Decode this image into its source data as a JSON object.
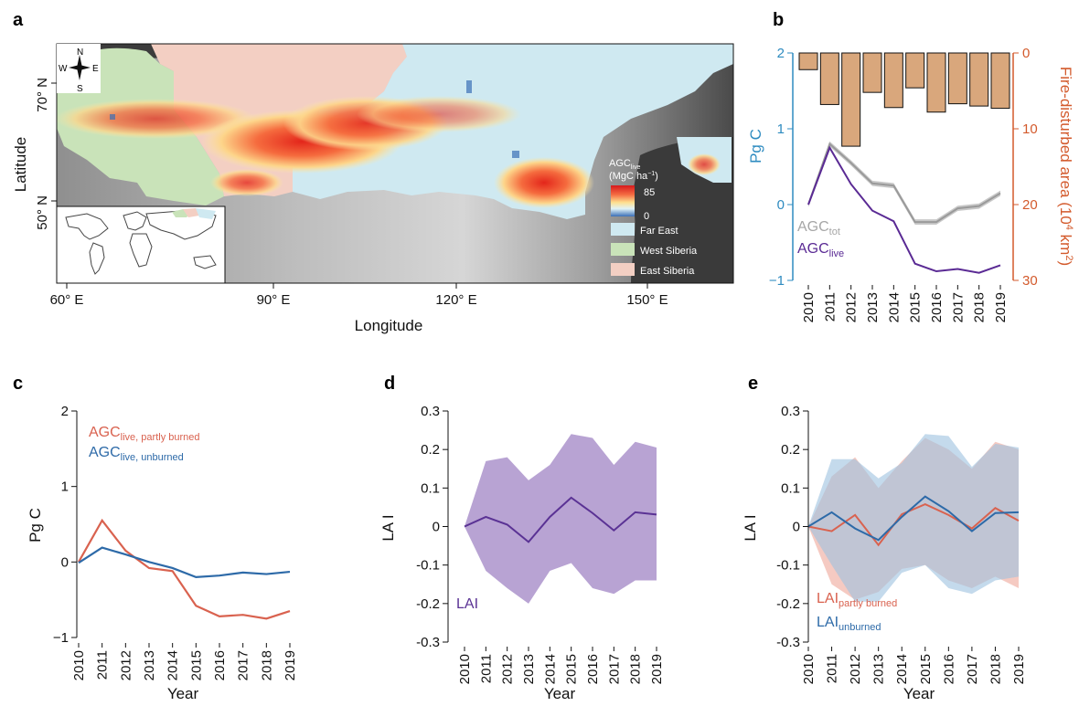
{
  "panels": {
    "a": "a",
    "b": "b",
    "c": "c",
    "d": "d",
    "e": "e"
  },
  "colors": {
    "far_east": "#cfe9f1",
    "west_siberia": "#c9e3b9",
    "east_siberia": "#f3cfc3",
    "agc_tot": "#9a9a9a",
    "agc_live": "#5a2a94",
    "fire_bar": "#d9a77c",
    "fire_axis": "#d35a2c",
    "pgc_axis": "#2e8bc0",
    "partly_burned": "#d9624f",
    "unburned": "#2d6aa8",
    "lai": "#5a3294",
    "lai_fill": "#b8a3d3"
  },
  "map": {
    "xlabel": "Longitude",
    "ylabel": "Latitude",
    "xticks": [
      "60° E",
      "90° E",
      "120° E",
      "150° E"
    ],
    "yticks": [
      "70° N",
      "50° N"
    ],
    "compass": {
      "n": "N",
      "s": "S",
      "e": "E",
      "w": "W"
    },
    "colorbar": {
      "title_main": "AGC",
      "title_sub": "live",
      "unit": "(MgC ha",
      "unit_sup": "−1",
      "unit_end": ")",
      "max": "85",
      "min": "0"
    },
    "legend": [
      "Far East",
      "West Siberia",
      "East Siberia"
    ]
  },
  "chart_data": [
    {
      "panel": "b",
      "type": "line",
      "x": [
        2010,
        2011,
        2012,
        2013,
        2014,
        2015,
        2016,
        2017,
        2018,
        2019
      ],
      "xticks": [
        "2010",
        "2011",
        "2012",
        "2013",
        "2014",
        "2015",
        "2016",
        "2017",
        "2018",
        "2019"
      ],
      "ylabel": "Pg C",
      "ylim": [
        -1,
        2
      ],
      "yticks": [
        "2",
        "1",
        "0",
        "−1"
      ],
      "series": [
        {
          "name": "AGC tot",
          "label_main": "AGC",
          "label_sub": "tot",
          "values": [
            0,
            0.8,
            0.55,
            0.28,
            0.25,
            -0.23,
            -0.23,
            -0.05,
            -0.02,
            0.15
          ]
        },
        {
          "name": "AGC live",
          "label_main": "AGC",
          "label_sub": "live",
          "values": [
            0,
            0.75,
            0.27,
            -0.08,
            -0.22,
            -0.78,
            -0.88,
            -0.85,
            -0.9,
            -0.8
          ]
        }
      ],
      "secondary": {
        "type": "bar",
        "ylabel_main": "Fire-disturbed area (10",
        "ylabel_sup1": "4",
        "ylabel_mid": " km",
        "ylabel_sup2": "2",
        "ylabel_end": ")",
        "ylim": [
          0,
          30
        ],
        "yticks": [
          "0",
          "10",
          "20",
          "30"
        ],
        "inverted": true,
        "values": [
          2.2,
          6.8,
          12.3,
          5.2,
          7.2,
          4.6,
          7.8,
          6.7,
          7.0,
          7.3
        ]
      }
    },
    {
      "panel": "c",
      "type": "line",
      "x": [
        2010,
        2011,
        2012,
        2013,
        2014,
        2015,
        2016,
        2017,
        2018,
        2019
      ],
      "xticks": [
        "2010",
        "2011",
        "2012",
        "2013",
        "2014",
        "2015",
        "2016",
        "2017",
        "2018",
        "2019"
      ],
      "xlabel": "Year",
      "ylabel": "Pg C",
      "ylim": [
        -1,
        2
      ],
      "yticks": [
        "2",
        "1",
        "0",
        "−1"
      ],
      "series": [
        {
          "name": "AGC live, partly burned",
          "label_main": "AGC",
          "label_sub": "live, partly burned",
          "values": [
            0,
            0.55,
            0.15,
            -0.08,
            -0.12,
            -0.58,
            -0.72,
            -0.7,
            -0.75,
            -0.65
          ]
        },
        {
          "name": "AGC live, unburned",
          "label_main": "AGC",
          "label_sub": "live, unburned",
          "values": [
            -0.01,
            0.19,
            0.1,
            0,
            -0.08,
            -0.2,
            -0.18,
            -0.14,
            -0.16,
            -0.13
          ]
        }
      ]
    },
    {
      "panel": "d",
      "type": "area",
      "x": [
        2010,
        2011,
        2012,
        2013,
        2014,
        2015,
        2016,
        2017,
        2018,
        2019
      ],
      "xticks": [
        "2010",
        "2011",
        "2012",
        "2013",
        "2014",
        "2015",
        "2016",
        "2017",
        "2018",
        "2019"
      ],
      "xlabel": "Year",
      "ylabel": "LA I",
      "ylim": [
        -0.3,
        0.3
      ],
      "yticks": [
        "0.3",
        "0.2",
        "0.1",
        "0",
        "-0.1",
        "-0.2",
        "-0.3"
      ],
      "series": [
        {
          "name": "LAI",
          "label_main": "LAI",
          "values": [
            0,
            0.025,
            0.005,
            -0.04,
            0.025,
            0.075,
            0.035,
            -0.01,
            0.037,
            0.031
          ],
          "upper": [
            0,
            0.17,
            0.18,
            0.12,
            0.16,
            0.24,
            0.23,
            0.16,
            0.22,
            0.205
          ],
          "lower": [
            0,
            -0.115,
            -0.16,
            -0.2,
            -0.115,
            -0.095,
            -0.16,
            -0.175,
            -0.14,
            -0.14
          ]
        }
      ]
    },
    {
      "panel": "e",
      "type": "area",
      "x": [
        2010,
        2011,
        2012,
        2013,
        2014,
        2015,
        2016,
        2017,
        2018,
        2019
      ],
      "xticks": [
        "2010",
        "2011",
        "2012",
        "2013",
        "2014",
        "2015",
        "2016",
        "2017",
        "2018",
        "2019"
      ],
      "xlabel": "Year",
      "ylabel": "LA I",
      "ylim": [
        -0.3,
        0.3
      ],
      "yticks": [
        "0.3",
        "0.2",
        "0.1",
        "0",
        "-0.1",
        "-0.2",
        "-0.3"
      ],
      "series": [
        {
          "name": "LAI partly burned",
          "label_main": "LAI",
          "label_sub": "partly burned",
          "values": [
            0,
            -0.012,
            0.03,
            -0.048,
            0.032,
            0.058,
            0.03,
            -0.005,
            0.048,
            0.015
          ],
          "upper": [
            0,
            0.13,
            0.18,
            0.1,
            0.17,
            0.23,
            0.2,
            0.15,
            0.22,
            0.2
          ],
          "lower": [
            0,
            -0.15,
            -0.19,
            -0.17,
            -0.11,
            -0.1,
            -0.14,
            -0.16,
            -0.13,
            -0.16
          ]
        },
        {
          "name": "LAI unburned",
          "label_main": "LAI",
          "label_sub": "unburned",
          "values": [
            0,
            0.037,
            -0.005,
            -0.035,
            0.025,
            0.078,
            0.04,
            -0.012,
            0.035,
            0.037
          ],
          "upper": [
            0,
            0.175,
            0.175,
            0.125,
            0.165,
            0.24,
            0.235,
            0.155,
            0.215,
            0.205
          ],
          "lower": [
            0,
            -0.1,
            -0.195,
            -0.195,
            -0.12,
            -0.1,
            -0.16,
            -0.175,
            -0.14,
            -0.13
          ]
        }
      ]
    }
  ]
}
